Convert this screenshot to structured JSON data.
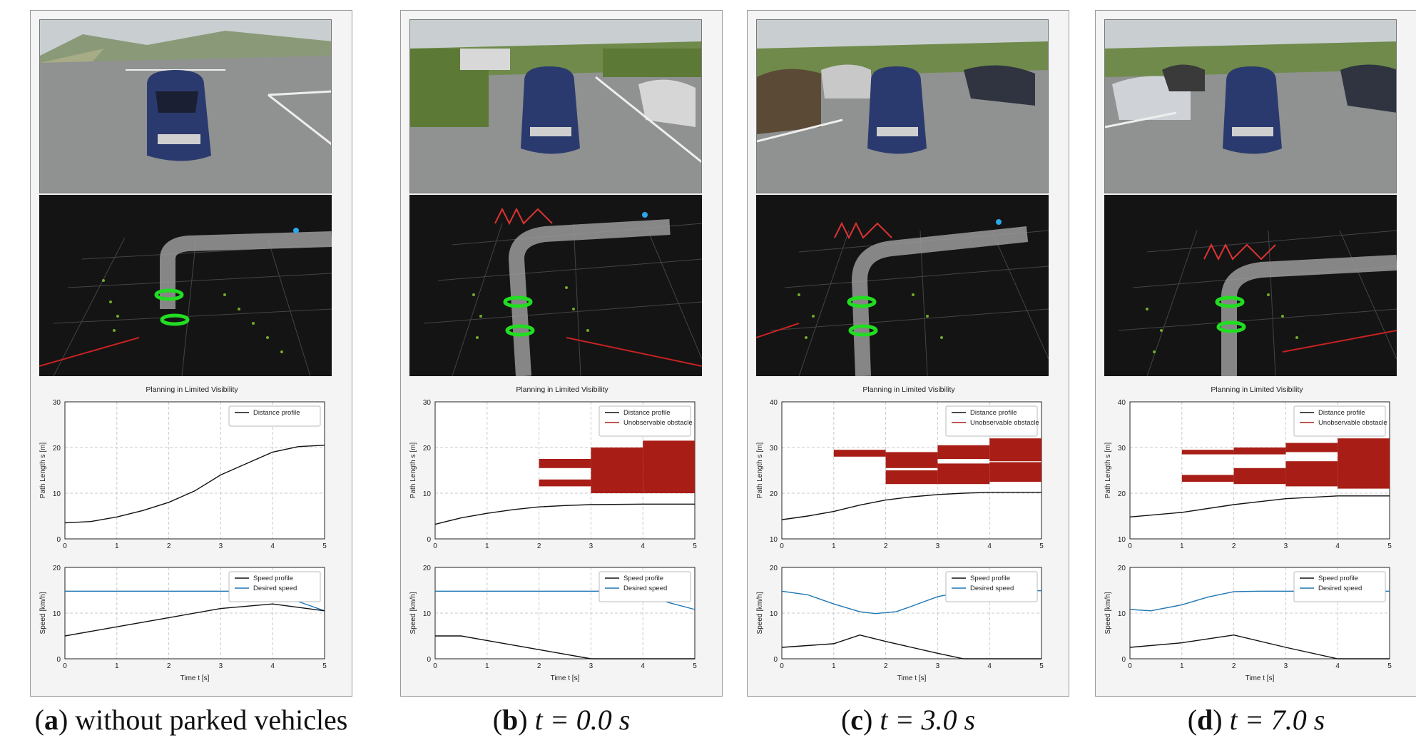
{
  "panels": [
    {
      "id": "a",
      "caption": {
        "letter": "a",
        "text": "without parked vehicles"
      },
      "chart_title": "Planning in Limited Visibility",
      "distance_plot": {
        "ylabel": "Path Length s [m]",
        "ylim": [
          0,
          30
        ],
        "yticks": [
          0,
          10,
          20,
          30
        ],
        "legend": [
          "Distance profile"
        ],
        "distance_profile": {
          "t": [
            0,
            0.5,
            1,
            1.5,
            2,
            2.5,
            3,
            3.5,
            4,
            4.5,
            5
          ],
          "s": [
            3.5,
            3.8,
            4.8,
            6.2,
            8.0,
            10.5,
            14.0,
            16.5,
            19.0,
            20.2,
            20.5
          ]
        },
        "obstacles": []
      },
      "speed_plot": {
        "ylabel": "Speed [km/h]",
        "ylim": [
          0,
          20
        ],
        "yticks": [
          0,
          10,
          20
        ],
        "xlabel": "Time t [s]",
        "xticks": [
          0,
          1,
          2,
          3,
          4,
          5
        ],
        "legend": [
          "Speed profile",
          "Desired speed"
        ],
        "speed_profile": {
          "t": [
            0,
            1,
            2,
            3,
            4,
            5
          ],
          "v": [
            5,
            7,
            9,
            11,
            12,
            10.5
          ]
        },
        "desired_speed": {
          "t": [
            0,
            3.5,
            4,
            4.5,
            5
          ],
          "v": [
            14.8,
            14.8,
            14.3,
            12.5,
            10.5
          ]
        }
      }
    },
    {
      "id": "b",
      "caption": {
        "letter": "b",
        "text": "t = 0.0 s"
      },
      "chart_title": "Planning in Limited Visibility",
      "distance_plot": {
        "ylabel": "Path Length s [m]",
        "ylim": [
          0,
          30
        ],
        "yticks": [
          0,
          10,
          20,
          30
        ],
        "legend": [
          "Distance profile",
          "Unobservable obstacle"
        ],
        "distance_profile": {
          "t": [
            0,
            0.5,
            1,
            1.5,
            2,
            2.5,
            3,
            4,
            5
          ],
          "s": [
            3.2,
            4.6,
            5.6,
            6.4,
            7.0,
            7.3,
            7.5,
            7.6,
            7.6
          ]
        },
        "obstacles": [
          [
            2,
            3,
            15.5,
            17.5
          ],
          [
            2,
            3,
            11.5,
            13
          ],
          [
            3,
            4,
            10,
            20
          ],
          [
            4,
            5,
            10,
            21.5
          ]
        ]
      },
      "speed_plot": {
        "ylabel": "Speed [km/h]",
        "ylim": [
          0,
          20
        ],
        "yticks": [
          0,
          10,
          20
        ],
        "xlabel": "Time t [s]",
        "xticks": [
          0,
          1,
          2,
          3,
          4,
          5
        ],
        "legend": [
          "Speed profile",
          "Desired speed"
        ],
        "speed_profile": {
          "t": [
            0,
            0.5,
            1,
            2,
            3,
            4,
            5
          ],
          "v": [
            5,
            5,
            4,
            2,
            0,
            0,
            0
          ]
        },
        "desired_speed": {
          "t": [
            0,
            3.5,
            4,
            4.5,
            5
          ],
          "v": [
            14.8,
            14.8,
            14.2,
            12.3,
            10.8
          ]
        }
      }
    },
    {
      "id": "c",
      "caption": {
        "letter": "c",
        "text": "t = 3.0 s"
      },
      "chart_title": "Planning in Limited Visibility",
      "distance_plot": {
        "ylabel": "Path Length s [m]",
        "ylim": [
          10,
          40
        ],
        "yticks": [
          10,
          20,
          30,
          40
        ],
        "legend": [
          "Distance profile",
          "Unobservable obstacle"
        ],
        "distance_profile": {
          "t": [
            0,
            0.5,
            1,
            1.5,
            2,
            2.5,
            3,
            3.5,
            4,
            5
          ],
          "s": [
            14.2,
            15.0,
            16.0,
            17.4,
            18.5,
            19.2,
            19.7,
            20.0,
            20.2,
            20.2
          ]
        },
        "obstacles": [
          [
            1,
            2,
            28,
            29.5
          ],
          [
            2,
            3,
            25.5,
            29
          ],
          [
            2,
            3,
            22,
            25
          ],
          [
            3,
            4,
            27.5,
            30.5
          ],
          [
            3,
            4,
            22,
            26.5
          ],
          [
            4,
            5,
            27,
            32
          ],
          [
            4,
            5,
            22.5,
            26.8
          ]
        ]
      },
      "speed_plot": {
        "ylabel": "Speed [km/h]",
        "ylim": [
          0,
          20
        ],
        "yticks": [
          0,
          10,
          20
        ],
        "xlabel": "Time t [s]",
        "xticks": [
          0,
          1,
          2,
          3,
          4,
          5
        ],
        "legend": [
          "Speed profile",
          "Desired speed"
        ],
        "speed_profile": {
          "t": [
            0,
            1,
            1.5,
            2,
            3,
            3.5,
            4,
            5
          ],
          "v": [
            2.5,
            3.3,
            5.2,
            3.8,
            1.2,
            0,
            0,
            0
          ]
        },
        "desired_speed": {
          "t": [
            0,
            0.5,
            1,
            1.5,
            1.8,
            2.2,
            2.5,
            3,
            3.5,
            4,
            5
          ],
          "v": [
            14.8,
            14.0,
            12.0,
            10.3,
            9.9,
            10.3,
            11.5,
            13.6,
            14.7,
            14.9,
            14.9
          ]
        }
      }
    },
    {
      "id": "d",
      "caption": {
        "letter": "d",
        "text": "t = 7.0 s"
      },
      "chart_title": "Planning in Limited Visibility",
      "distance_plot": {
        "ylabel": "Path Length s [m]",
        "ylim": [
          10,
          40
        ],
        "yticks": [
          10,
          20,
          30,
          40
        ],
        "legend": [
          "Distance profile",
          "Unobservable obstacle"
        ],
        "distance_profile": {
          "t": [
            0,
            1,
            2,
            3,
            4,
            5
          ],
          "s": [
            14.8,
            15.8,
            17.5,
            18.8,
            19.4,
            19.4
          ]
        },
        "obstacles": [
          [
            1,
            2,
            28.5,
            29.5
          ],
          [
            1,
            2,
            22.5,
            24
          ],
          [
            2,
            3,
            28.5,
            30
          ],
          [
            2,
            3,
            22,
            25.5
          ],
          [
            3,
            4,
            29,
            31
          ],
          [
            3,
            4,
            21.5,
            27
          ],
          [
            4,
            5,
            27,
            32
          ],
          [
            4,
            5,
            21,
            28
          ]
        ]
      },
      "speed_plot": {
        "ylabel": "Speed [km/h]",
        "ylim": [
          0,
          20
        ],
        "yticks": [
          0,
          10,
          20
        ],
        "xlabel": "Time t [s]",
        "xticks": [
          0,
          1,
          2,
          3,
          4,
          5
        ],
        "legend": [
          "Speed profile",
          "Desired speed"
        ],
        "speed_profile": {
          "t": [
            0,
            1,
            2,
            3,
            4,
            5
          ],
          "v": [
            2.5,
            3.5,
            5.2,
            2.5,
            0,
            0
          ]
        },
        "desired_speed": {
          "t": [
            0,
            0.4,
            1,
            1.5,
            2,
            2.5,
            5
          ],
          "v": [
            10.8,
            10.5,
            11.8,
            13.5,
            14.7,
            14.8,
            14.8
          ]
        }
      }
    }
  ],
  "colors": {
    "profile": "#111111",
    "desired": "#1f77b4",
    "obstacle": "#a81e16",
    "grid": "#c8c8c8"
  }
}
